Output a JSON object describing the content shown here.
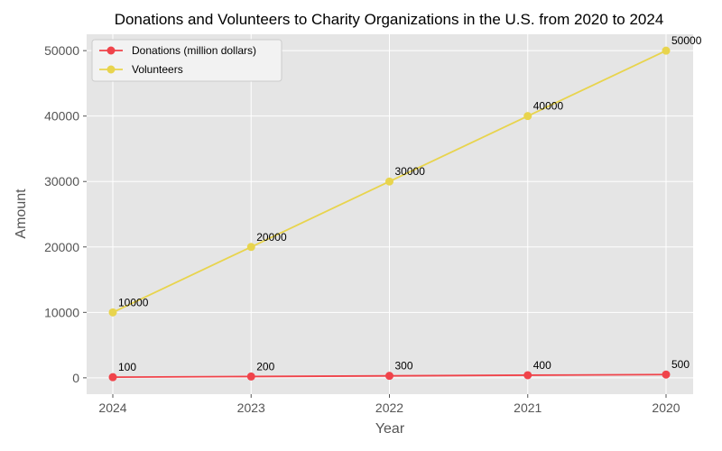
{
  "chart_data": {
    "type": "line",
    "title": "Donations and Volunteers to Charity Organizations in the U.S. from 2020 to 2024",
    "xlabel": "Year",
    "ylabel": "Amount",
    "categories": [
      "2024",
      "2023",
      "2022",
      "2021",
      "2020"
    ],
    "yticks": [
      "0",
      "10000",
      "20000",
      "30000",
      "40000",
      "50000"
    ],
    "ylim": [
      -2500,
      52500
    ],
    "grid": true,
    "legend_position": "top-left",
    "series": [
      {
        "name": "Donations (million dollars)",
        "color": "#f0434a",
        "values": [
          100,
          200,
          300,
          400,
          500
        ],
        "labels": [
          "100",
          "200",
          "300",
          "400",
          "500"
        ]
      },
      {
        "name": "Volunteers",
        "color": "#e8d44d",
        "values": [
          10000,
          20000,
          30000,
          40000,
          50000
        ],
        "labels": [
          "10000",
          "20000",
          "30000",
          "40000",
          "50000"
        ]
      }
    ]
  }
}
